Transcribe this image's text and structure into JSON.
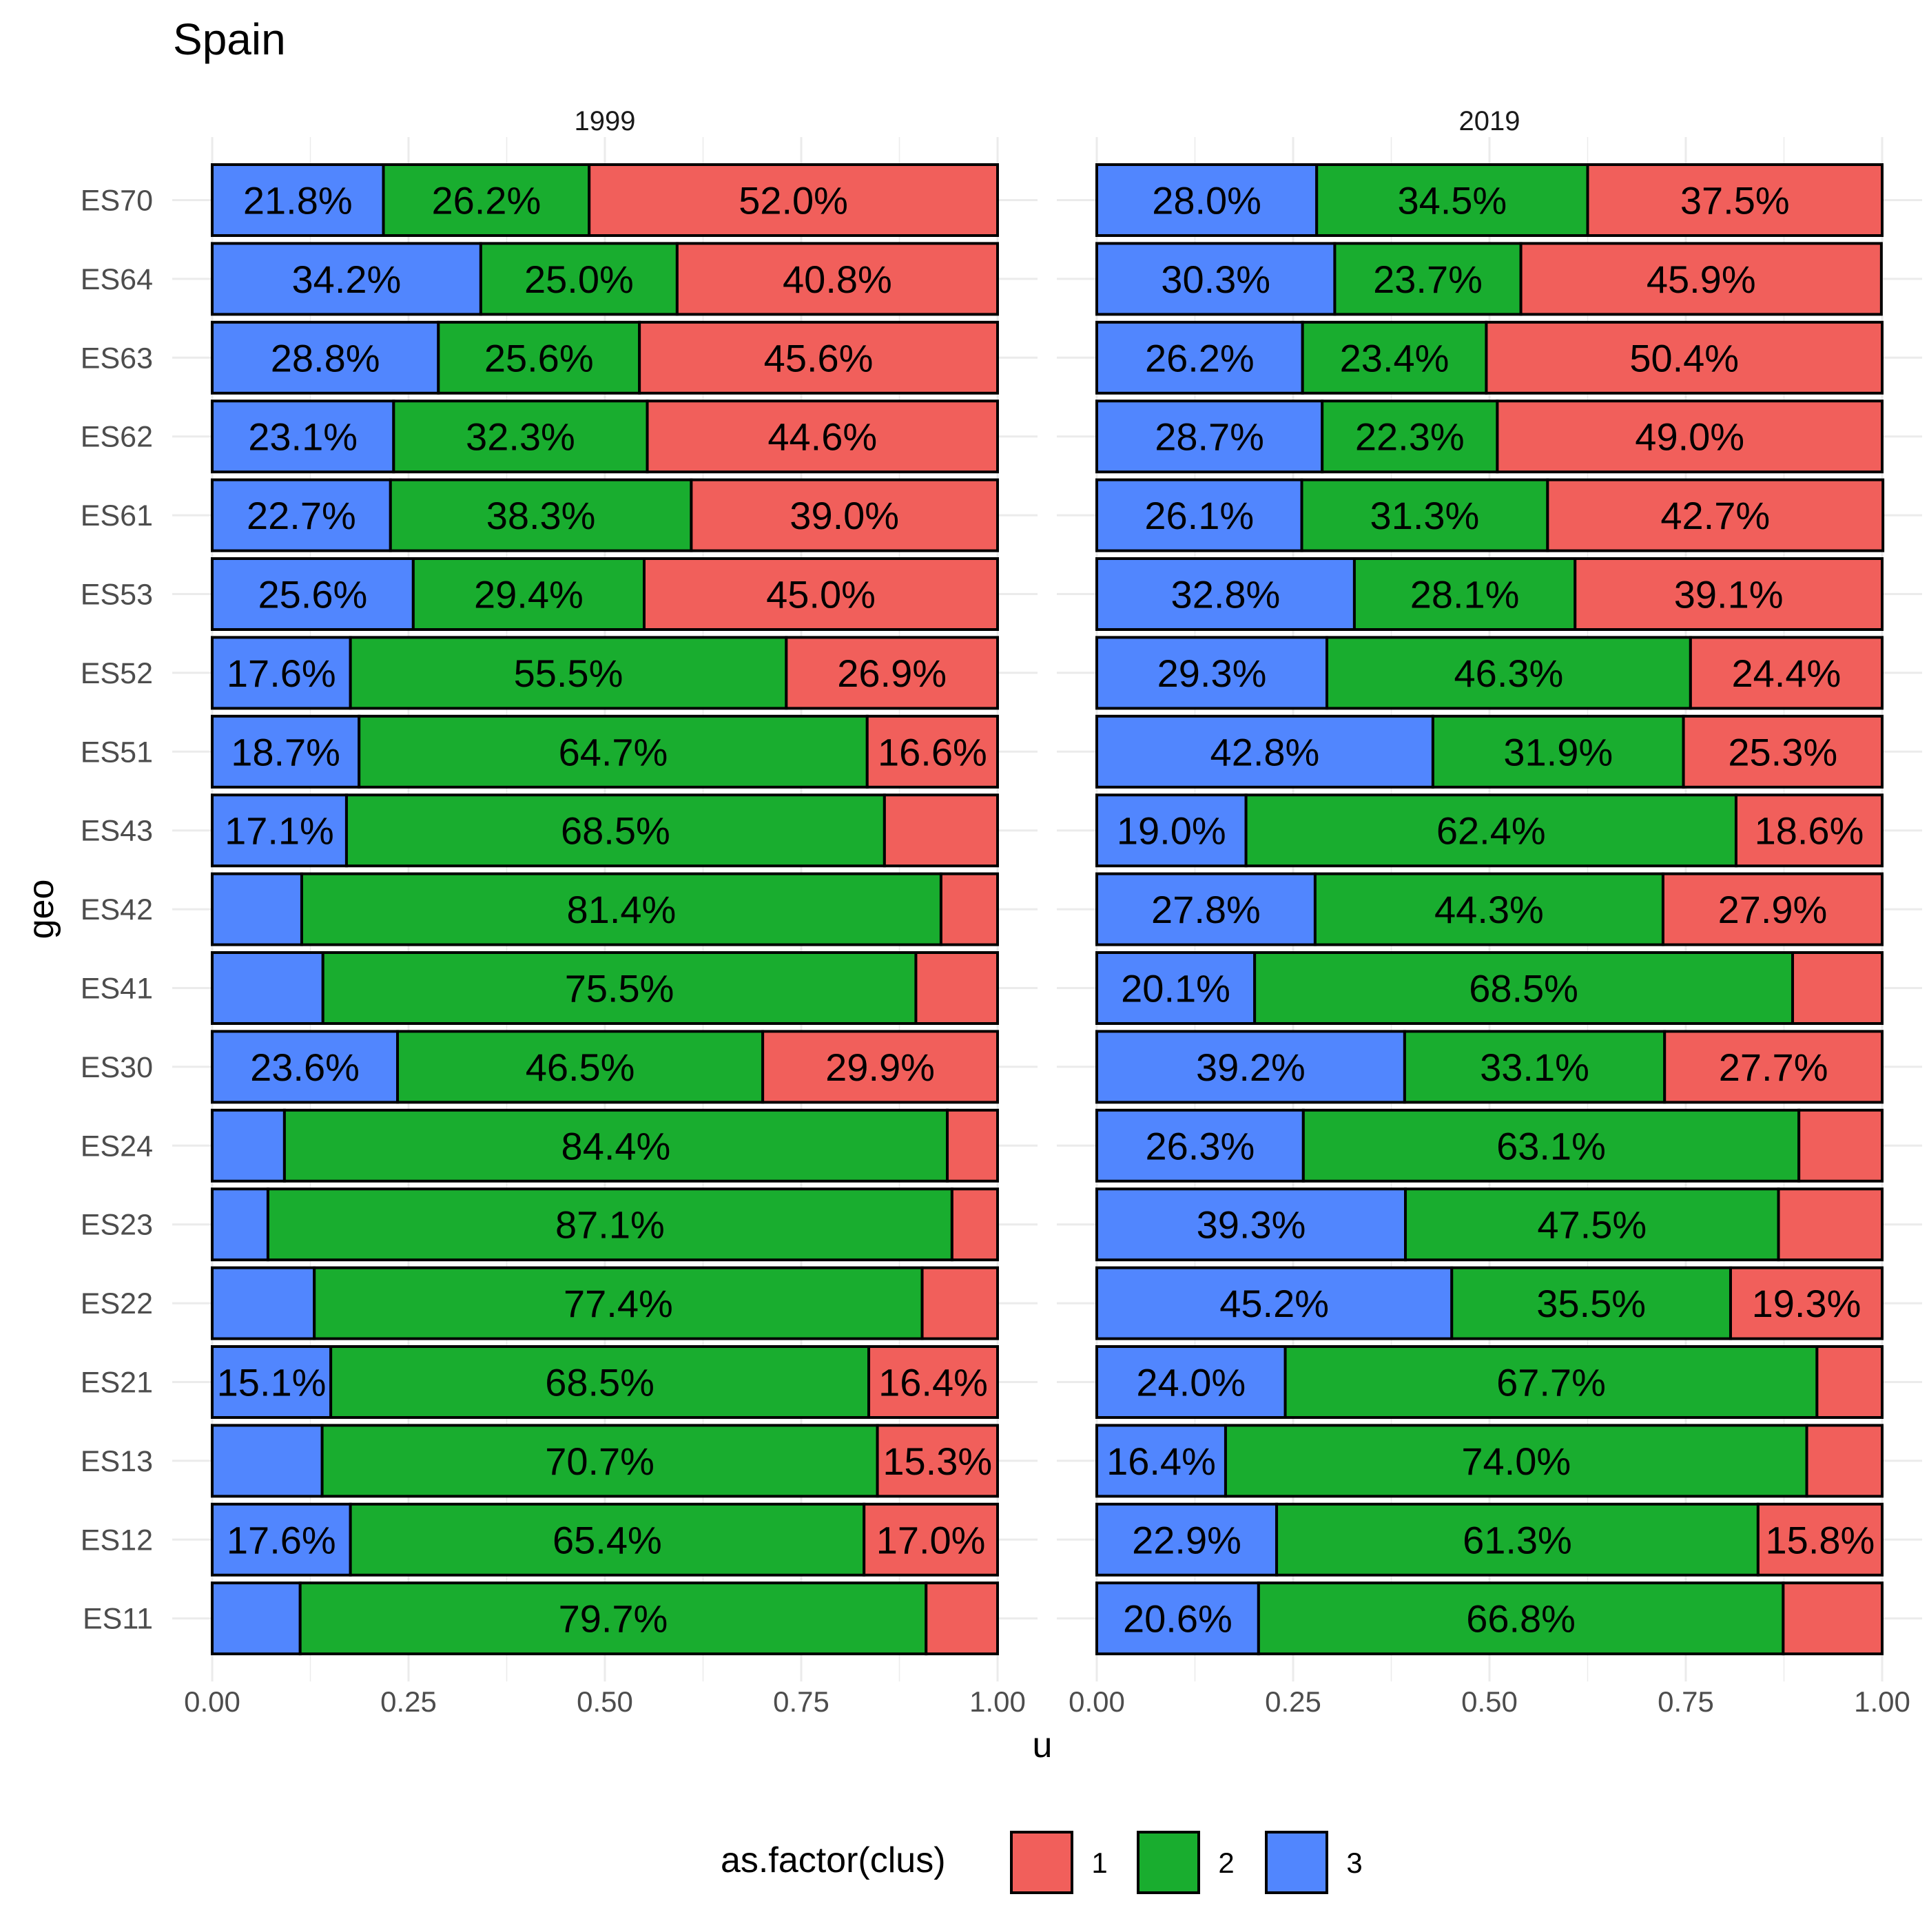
{
  "chart_data": {
    "type": "bar",
    "orientation": "horizontal",
    "stacked": "fill",
    "title": "Spain",
    "xlabel": "u",
    "ylabel": "geo",
    "xlim": [
      0,
      1
    ],
    "x_ticks": [
      "0.00",
      "0.25",
      "0.50",
      "0.75",
      "1.00"
    ],
    "x_tick_values": [
      0,
      0.25,
      0.5,
      0.75,
      1.0
    ],
    "grid": true,
    "legend": {
      "title": "as.factor(clus)",
      "placement": "bottom",
      "items": [
        {
          "label": "1",
          "color": "#F15F5B"
        },
        {
          "label": "2",
          "color": "#19AD2F"
        },
        {
          "label": "3",
          "color": "#5186FE"
        }
      ]
    },
    "series_order": [
      "3",
      "2",
      "1"
    ],
    "colors": {
      "1": "#F15F5B",
      "2": "#19AD2F",
      "3": "#5186FE"
    },
    "categories": [
      "ES70",
      "ES64",
      "ES63",
      "ES62",
      "ES61",
      "ES53",
      "ES52",
      "ES51",
      "ES43",
      "ES42",
      "ES41",
      "ES30",
      "ES24",
      "ES23",
      "ES22",
      "ES21",
      "ES13",
      "ES12",
      "ES11"
    ],
    "panels": [
      {
        "label": "1999",
        "rows": [
          {
            "geo": "ES70",
            "values": {
              "3": 0.218,
              "2": 0.262,
              "1": 0.52
            },
            "labels": {
              "3": "21.8%",
              "2": "26.2%",
              "1": "52.0%"
            }
          },
          {
            "geo": "ES64",
            "values": {
              "3": 0.342,
              "2": 0.25,
              "1": 0.408
            },
            "labels": {
              "3": "34.2%",
              "2": "25.0%",
              "1": "40.8%"
            }
          },
          {
            "geo": "ES63",
            "values": {
              "3": 0.288,
              "2": 0.256,
              "1": 0.456
            },
            "labels": {
              "3": "28.8%",
              "2": "25.6%",
              "1": "45.6%"
            }
          },
          {
            "geo": "ES62",
            "values": {
              "3": 0.231,
              "2": 0.323,
              "1": 0.446
            },
            "labels": {
              "3": "23.1%",
              "2": "32.3%",
              "1": "44.6%"
            }
          },
          {
            "geo": "ES61",
            "values": {
              "3": 0.227,
              "2": 0.383,
              "1": 0.39
            },
            "labels": {
              "3": "22.7%",
              "2": "38.3%",
              "1": "39.0%"
            }
          },
          {
            "geo": "ES53",
            "values": {
              "3": 0.256,
              "2": 0.294,
              "1": 0.45
            },
            "labels": {
              "3": "25.6%",
              "2": "29.4%",
              "1": "45.0%"
            }
          },
          {
            "geo": "ES52",
            "values": {
              "3": 0.176,
              "2": 0.555,
              "1": 0.269
            },
            "labels": {
              "3": "17.6%",
              "2": "55.5%",
              "1": "26.9%"
            }
          },
          {
            "geo": "ES51",
            "values": {
              "3": 0.187,
              "2": 0.647,
              "1": 0.166
            },
            "labels": {
              "3": "18.7%",
              "2": "64.7%",
              "1": "16.6%"
            }
          },
          {
            "geo": "ES43",
            "values": {
              "3": 0.171,
              "2": 0.685,
              "1": 0.144
            },
            "labels": {
              "3": "17.1%",
              "2": "68.5%",
              "1": ""
            }
          },
          {
            "geo": "ES42",
            "values": {
              "3": 0.114,
              "2": 0.814,
              "1": 0.072
            },
            "labels": {
              "3": "",
              "2": "81.4%",
              "1": ""
            }
          },
          {
            "geo": "ES41",
            "values": {
              "3": 0.141,
              "2": 0.755,
              "1": 0.104
            },
            "labels": {
              "3": "",
              "2": "75.5%",
              "1": ""
            }
          },
          {
            "geo": "ES30",
            "values": {
              "3": 0.236,
              "2": 0.465,
              "1": 0.299
            },
            "labels": {
              "3": "23.6%",
              "2": "46.5%",
              "1": "29.9%"
            }
          },
          {
            "geo": "ES24",
            "values": {
              "3": 0.092,
              "2": 0.844,
              "1": 0.064
            },
            "labels": {
              "3": "",
              "2": "84.4%",
              "1": ""
            }
          },
          {
            "geo": "ES23",
            "values": {
              "3": 0.071,
              "2": 0.871,
              "1": 0.058
            },
            "labels": {
              "3": "",
              "2": "87.1%",
              "1": ""
            }
          },
          {
            "geo": "ES22",
            "values": {
              "3": 0.13,
              "2": 0.774,
              "1": 0.096
            },
            "labels": {
              "3": "",
              "2": "77.4%",
              "1": ""
            }
          },
          {
            "geo": "ES21",
            "values": {
              "3": 0.151,
              "2": 0.685,
              "1": 0.164
            },
            "labels": {
              "3": "15.1%",
              "2": "68.5%",
              "1": "16.4%"
            }
          },
          {
            "geo": "ES13",
            "values": {
              "3": 0.14,
              "2": 0.707,
              "1": 0.153
            },
            "labels": {
              "3": "",
              "2": "70.7%",
              "1": "15.3%"
            }
          },
          {
            "geo": "ES12",
            "values": {
              "3": 0.176,
              "2": 0.654,
              "1": 0.17
            },
            "labels": {
              "3": "17.6%",
              "2": "65.4%",
              "1": "17.0%"
            }
          },
          {
            "geo": "ES11",
            "values": {
              "3": 0.112,
              "2": 0.797,
              "1": 0.091
            },
            "labels": {
              "3": "",
              "2": "79.7%",
              "1": ""
            }
          }
        ]
      },
      {
        "label": "2019",
        "rows": [
          {
            "geo": "ES70",
            "values": {
              "3": 0.28,
              "2": 0.345,
              "1": 0.375
            },
            "labels": {
              "3": "28.0%",
              "2": "34.5%",
              "1": "37.5%"
            }
          },
          {
            "geo": "ES64",
            "values": {
              "3": 0.303,
              "2": 0.237,
              "1": 0.459
            },
            "labels": {
              "3": "30.3%",
              "2": "23.7%",
              "1": "45.9%"
            }
          },
          {
            "geo": "ES63",
            "values": {
              "3": 0.262,
              "2": 0.234,
              "1": 0.504
            },
            "labels": {
              "3": "26.2%",
              "2": "23.4%",
              "1": "50.4%"
            }
          },
          {
            "geo": "ES62",
            "values": {
              "3": 0.287,
              "2": 0.223,
              "1": 0.49
            },
            "labels": {
              "3": "28.7%",
              "2": "22.3%",
              "1": "49.0%"
            }
          },
          {
            "geo": "ES61",
            "values": {
              "3": 0.261,
              "2": 0.313,
              "1": 0.427
            },
            "labels": {
              "3": "26.1%",
              "2": "31.3%",
              "1": "42.7%"
            }
          },
          {
            "geo": "ES53",
            "values": {
              "3": 0.328,
              "2": 0.281,
              "1": 0.391
            },
            "labels": {
              "3": "32.8%",
              "2": "28.1%",
              "1": "39.1%"
            }
          },
          {
            "geo": "ES52",
            "values": {
              "3": 0.293,
              "2": 0.463,
              "1": 0.244
            },
            "labels": {
              "3": "29.3%",
              "2": "46.3%",
              "1": "24.4%"
            }
          },
          {
            "geo": "ES51",
            "values": {
              "3": 0.428,
              "2": 0.319,
              "1": 0.253
            },
            "labels": {
              "3": "42.8%",
              "2": "31.9%",
              "1": "25.3%"
            }
          },
          {
            "geo": "ES43",
            "values": {
              "3": 0.19,
              "2": 0.624,
              "1": 0.186
            },
            "labels": {
              "3": "19.0%",
              "2": "62.4%",
              "1": "18.6%"
            }
          },
          {
            "geo": "ES42",
            "values": {
              "3": 0.278,
              "2": 0.443,
              "1": 0.279
            },
            "labels": {
              "3": "27.8%",
              "2": "44.3%",
              "1": "27.9%"
            }
          },
          {
            "geo": "ES41",
            "values": {
              "3": 0.201,
              "2": 0.685,
              "1": 0.114
            },
            "labels": {
              "3": "20.1%",
              "2": "68.5%",
              "1": ""
            }
          },
          {
            "geo": "ES30",
            "values": {
              "3": 0.392,
              "2": 0.331,
              "1": 0.277
            },
            "labels": {
              "3": "39.2%",
              "2": "33.1%",
              "1": "27.7%"
            }
          },
          {
            "geo": "ES24",
            "values": {
              "3": 0.263,
              "2": 0.631,
              "1": 0.106
            },
            "labels": {
              "3": "26.3%",
              "2": "63.1%",
              "1": ""
            }
          },
          {
            "geo": "ES23",
            "values": {
              "3": 0.393,
              "2": 0.475,
              "1": 0.132
            },
            "labels": {
              "3": "39.3%",
              "2": "47.5%",
              "1": ""
            }
          },
          {
            "geo": "ES22",
            "values": {
              "3": 0.452,
              "2": 0.355,
              "1": 0.193
            },
            "labels": {
              "3": "45.2%",
              "2": "35.5%",
              "1": "19.3%"
            }
          },
          {
            "geo": "ES21",
            "values": {
              "3": 0.24,
              "2": 0.677,
              "1": 0.083
            },
            "labels": {
              "3": "24.0%",
              "2": "67.7%",
              "1": ""
            }
          },
          {
            "geo": "ES13",
            "values": {
              "3": 0.164,
              "2": 0.74,
              "1": 0.096
            },
            "labels": {
              "3": "16.4%",
              "2": "74.0%",
              "1": ""
            }
          },
          {
            "geo": "ES12",
            "values": {
              "3": 0.229,
              "2": 0.613,
              "1": 0.158
            },
            "labels": {
              "3": "22.9%",
              "2": "61.3%",
              "1": "15.8%"
            }
          },
          {
            "geo": "ES11",
            "values": {
              "3": 0.206,
              "2": 0.668,
              "1": 0.126
            },
            "labels": {
              "3": "20.6%",
              "2": "66.8%",
              "1": ""
            }
          }
        ]
      }
    ]
  }
}
